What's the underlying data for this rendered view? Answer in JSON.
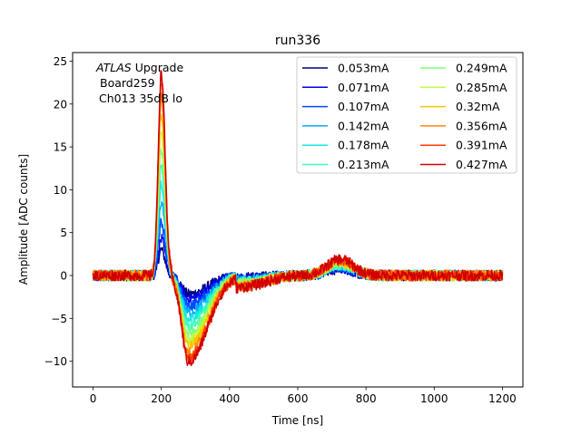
{
  "chart_data": {
    "type": "line",
    "title": "run336",
    "xlabel": "Time [ns]",
    "ylabel": "Amplitude [ADC counts]",
    "xlim": [
      -60,
      1260
    ],
    "ylim": [
      -13.0,
      26.0
    ],
    "xticks": [
      0,
      200,
      400,
      600,
      800,
      1000,
      1200
    ],
    "yticks": [
      -10,
      -5,
      0,
      5,
      10,
      15,
      20,
      25
    ],
    "grid": false,
    "legend_position": "top-right",
    "legend_columns": 2,
    "annotation": {
      "line1_italic": "ATLAS",
      "line1_rest": " Upgrade",
      "line2": "Board259",
      "line3": "Ch013 35dB lo"
    },
    "series": [
      {
        "name": "0.053mA",
        "color": "#00007f",
        "peak": 3.0,
        "trough": -2.2,
        "bump": 0.8
      },
      {
        "name": "0.071mA",
        "color": "#0000ed",
        "peak": 4.2,
        "trough": -2.7,
        "bump": 0.9
      },
      {
        "name": "0.107mA",
        "color": "#004cff",
        "peak": 6.3,
        "trough": -3.5,
        "bump": 1.0
      },
      {
        "name": "0.142mA",
        "color": "#00acff",
        "peak": 8.5,
        "trough": -4.3,
        "bump": 1.1
      },
      {
        "name": "0.178mA",
        "color": "#16e6e1",
        "peak": 10.6,
        "trough": -5.1,
        "bump": 1.2
      },
      {
        "name": "0.213mA",
        "color": "#3dffba",
        "peak": 12.7,
        "trough": -5.9,
        "bump": 1.3
      },
      {
        "name": "0.249mA",
        "color": "#7dff7a",
        "peak": 14.8,
        "trough": -6.7,
        "bump": 1.4
      },
      {
        "name": "0.285mA",
        "color": "#baff3d",
        "peak": 16.9,
        "trough": -7.5,
        "bump": 1.5
      },
      {
        "name": "0.32mA",
        "color": "#ffc400",
        "peak": 19.0,
        "trough": -8.3,
        "bump": 1.6
      },
      {
        "name": "0.356mA",
        "color": "#ff8600",
        "peak": 21.1,
        "trough": -9.1,
        "bump": 1.7
      },
      {
        "name": "0.391mA",
        "color": "#ff3b00",
        "peak": 22.6,
        "trough": -9.7,
        "bump": 1.8
      },
      {
        "name": "0.427mA",
        "color": "#d00000",
        "peak": 23.7,
        "trough": -10.1,
        "bump": 1.9
      }
    ]
  }
}
